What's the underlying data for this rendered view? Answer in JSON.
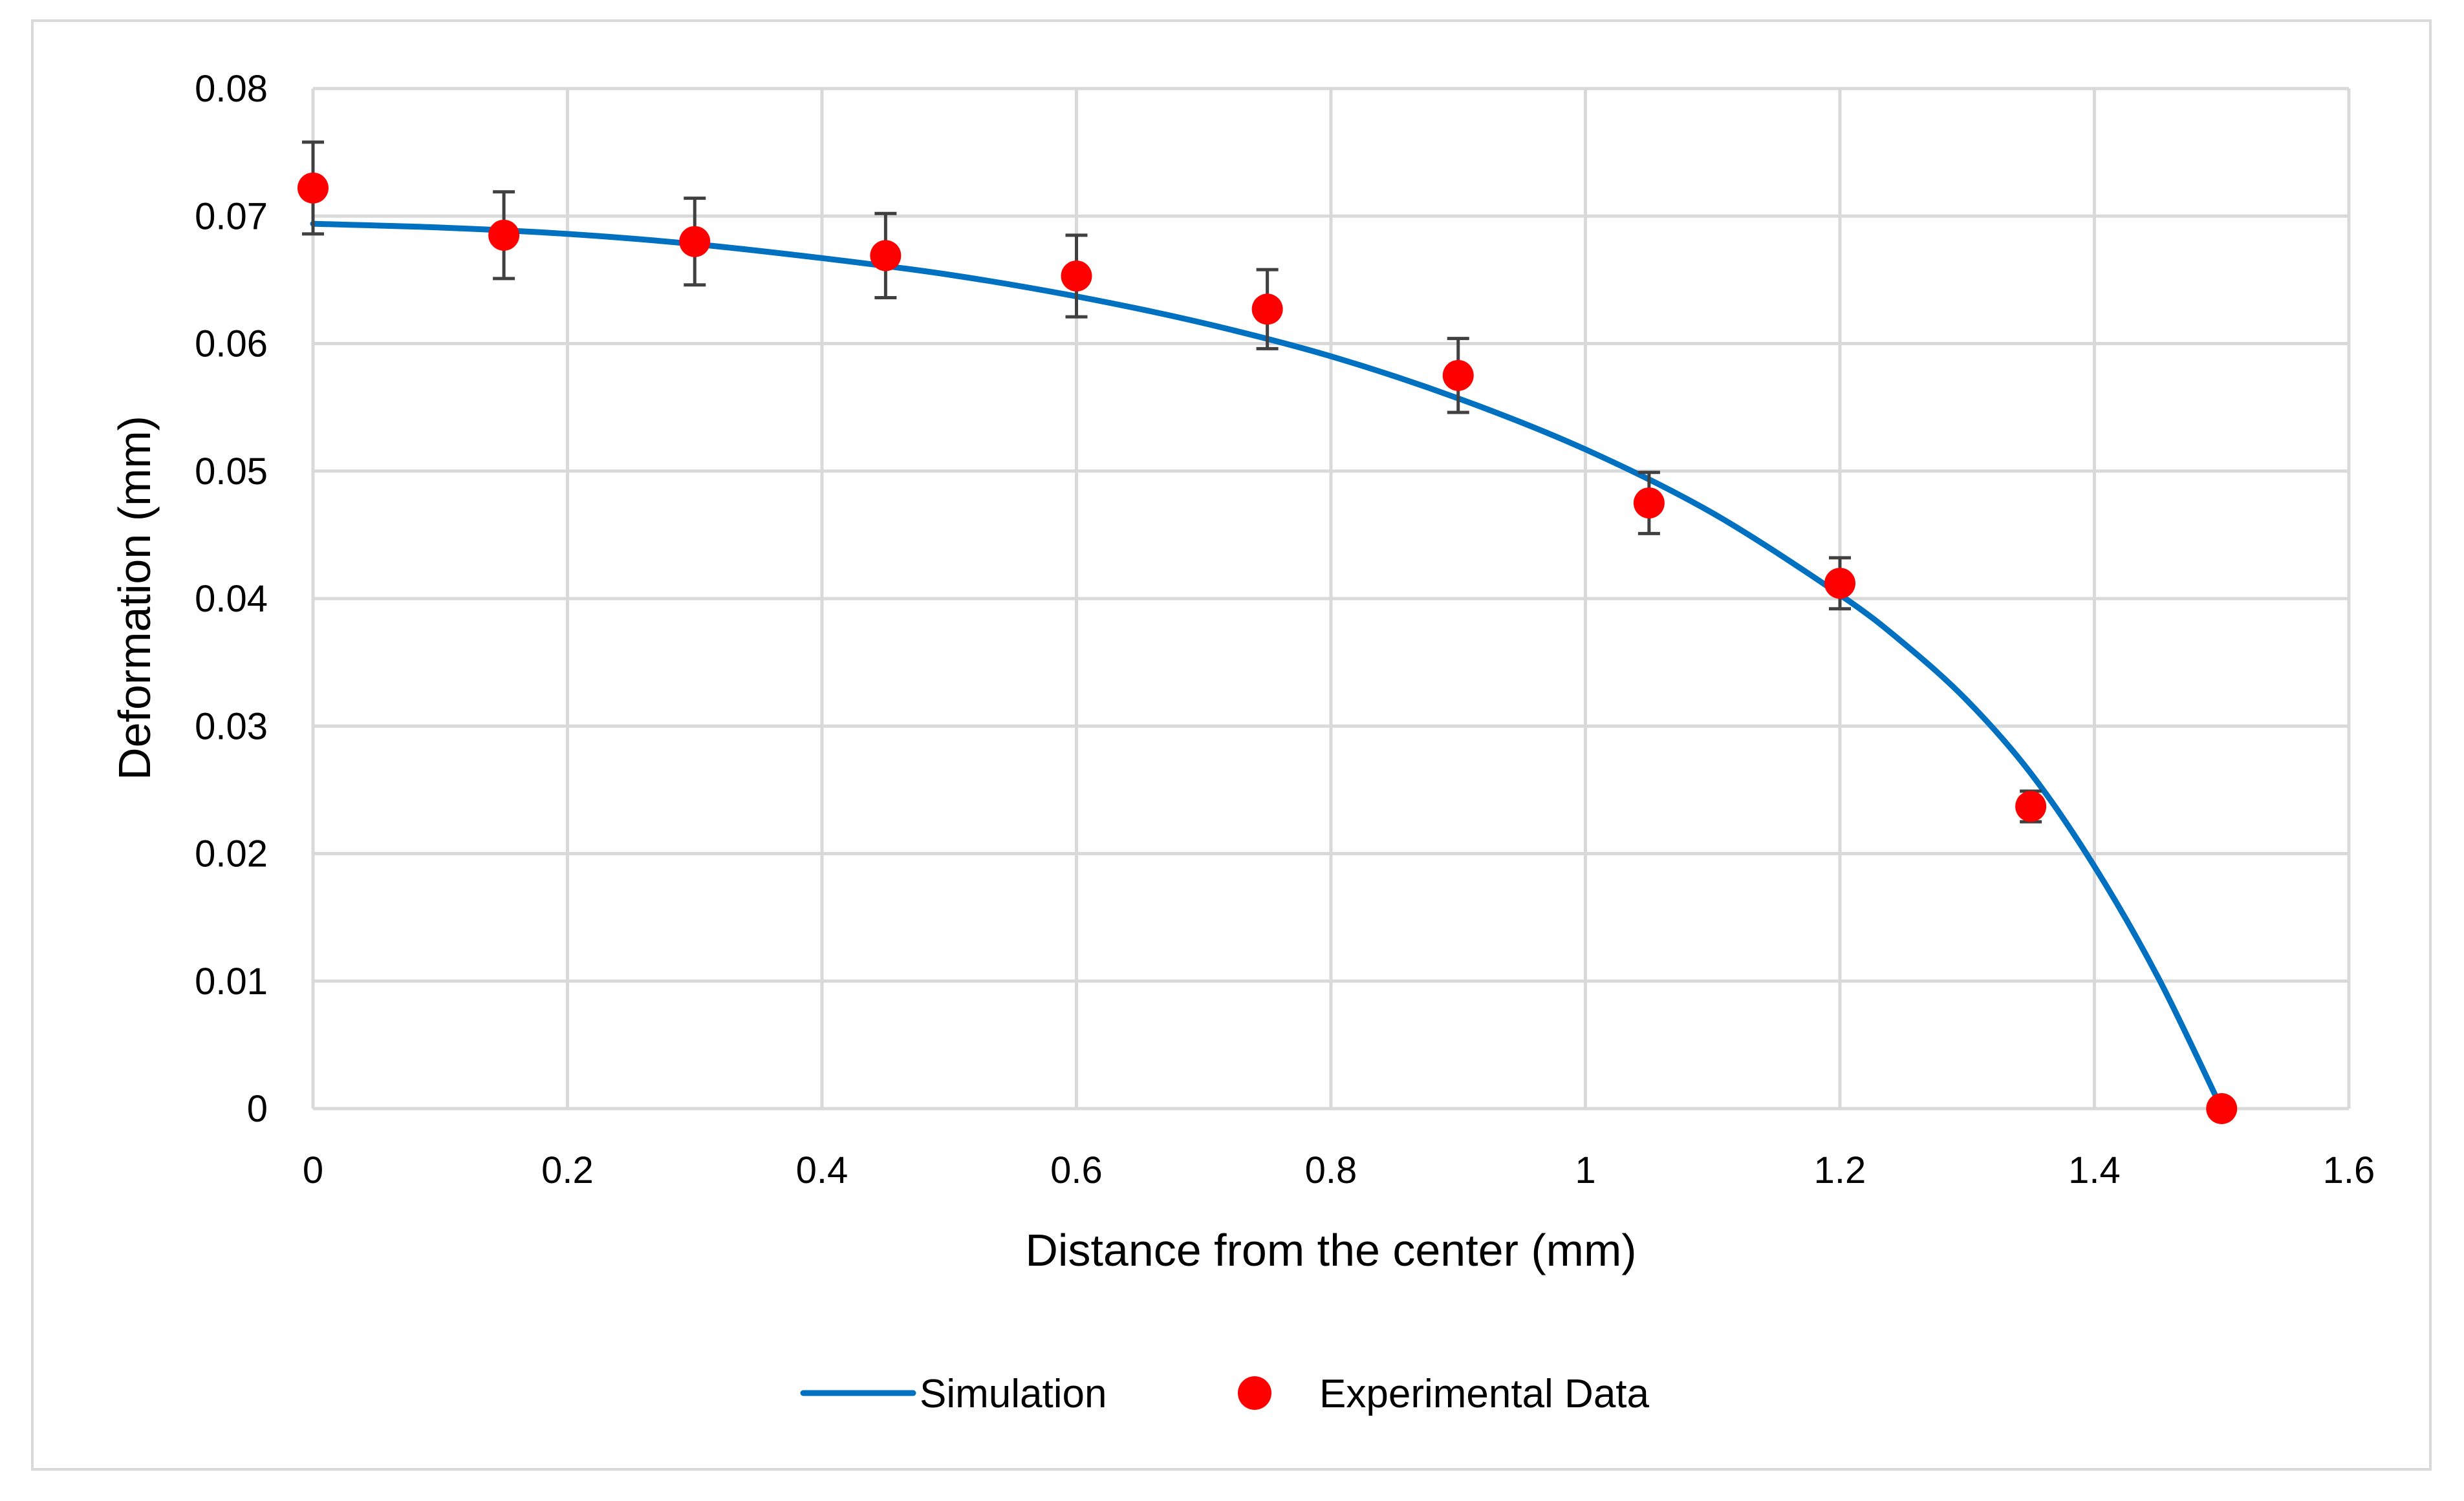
{
  "chart_data": {
    "type": "line",
    "title": "",
    "xlabel": "Distance from the center (mm)",
    "ylabel": "Deformation (mm)",
    "xlim": [
      0,
      1.6
    ],
    "ylim": [
      0,
      0.08
    ],
    "x_ticks": [
      0,
      0.2,
      0.4,
      0.6,
      0.8,
      1.0,
      1.2,
      1.4,
      1.6
    ],
    "x_tick_labels": [
      "0",
      "0.2",
      "0.4",
      "0.6",
      "0.8",
      "1",
      "1.2",
      "1.4",
      "1.6"
    ],
    "y_ticks": [
      0,
      0.01,
      0.02,
      0.03,
      0.04,
      0.05,
      0.06,
      0.07,
      0.08
    ],
    "y_tick_labels": [
      "0",
      "0.01",
      "0.02",
      "0.03",
      "0.04",
      "0.05",
      "0.06",
      "0.07",
      "0.08"
    ],
    "grid": true,
    "legend_position": "bottom-center",
    "series": [
      {
        "name": "Simulation",
        "kind": "line",
        "color": "#0070c0",
        "x": [
          0,
          0.1,
          0.2,
          0.3,
          0.4,
          0.5,
          0.6,
          0.7,
          0.8,
          0.9,
          1.0,
          1.1,
          1.2,
          1.25,
          1.3,
          1.35,
          1.4,
          1.45,
          1.5
        ],
        "y": [
          0.0694,
          0.0691,
          0.0686,
          0.0678,
          0.0667,
          0.0654,
          0.0637,
          0.0616,
          0.059,
          0.0557,
          0.0517,
          0.0467,
          0.0403,
          0.0365,
          0.032,
          0.0263,
          0.019,
          0.0103,
          0.0
        ]
      },
      {
        "name": "Experimental Data",
        "kind": "scatter",
        "color": "#ff0000",
        "error_bar_color": "#404040",
        "x": [
          0,
          0.15,
          0.3,
          0.45,
          0.6,
          0.75,
          0.9,
          1.05,
          1.2,
          1.35,
          1.5
        ],
        "y": [
          0.0722,
          0.0685,
          0.068,
          0.0669,
          0.0653,
          0.0627,
          0.0575,
          0.0475,
          0.0412,
          0.0237,
          0.0
        ],
        "error": [
          0.0036,
          0.0034,
          0.0034,
          0.0033,
          0.0032,
          0.0031,
          0.0029,
          0.0024,
          0.002,
          0.0012,
          0.0
        ]
      }
    ]
  }
}
